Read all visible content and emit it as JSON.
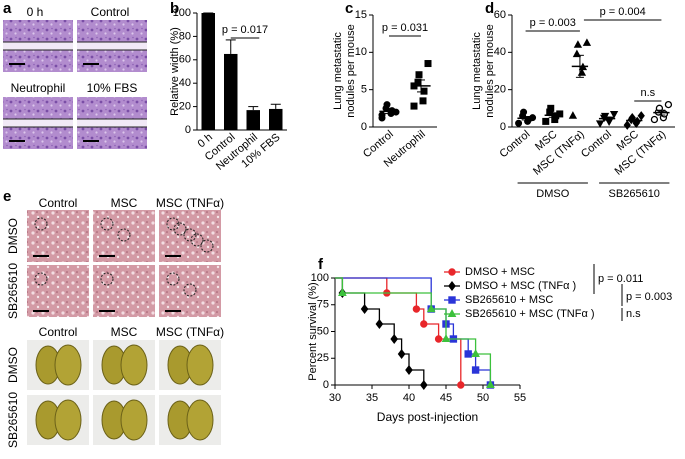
{
  "figure": {
    "a": {
      "label": "a",
      "image_labels": [
        "0 h",
        "Control",
        "Neutrophil",
        "10% FBS"
      ]
    },
    "e": {
      "label": "e",
      "column_labels": [
        "Control",
        "MSC",
        "MSC (TNFα)"
      ],
      "row_labels": [
        "DMSO",
        "SB265610"
      ]
    }
  },
  "chart_data": [
    {
      "panel": "b",
      "type": "bar",
      "ylabel": [
        "Relative width (%)"
      ],
      "categories": [
        "0 h",
        "Control",
        "Neutrophil",
        "10% FBS"
      ],
      "values": [
        100,
        65,
        17,
        18
      ],
      "errors": [
        0,
        12,
        3,
        4
      ],
      "color": "#000000",
      "ylim": [
        0,
        100
      ],
      "yticks": [
        0,
        20,
        40,
        60,
        80,
        100
      ],
      "annotations": [
        "p = 0.017"
      ]
    },
    {
      "panel": "c",
      "type": "scatter",
      "ylabel": [
        "Lung metastatic",
        "nodules per mouse"
      ],
      "categories": [
        "Control",
        "Neutrophil"
      ],
      "markers": [
        "circle",
        "square"
      ],
      "color": "#000000",
      "points": [
        [
          1.2,
          1.8,
          2.2,
          2.5,
          3,
          2,
          1.6
        ],
        [
          2.8,
          3.5,
          4.8,
          6,
          7,
          8.5,
          5.5
        ]
      ],
      "means": [
        2.1,
        5.5
      ],
      "sems": [
        0.3,
        0.8
      ],
      "ylim": [
        0,
        15
      ],
      "yticks": [
        0,
        5,
        10,
        15
      ],
      "annotations": [
        "p = 0.031"
      ]
    },
    {
      "panel": "d",
      "type": "scatter",
      "ylabel": [
        "Lung metastatic",
        "nodules per mouse"
      ],
      "categories": [
        "Control",
        "MSC",
        "MSC (TNFα)",
        "Control",
        "MSC",
        "MSC (TNFα)"
      ],
      "groups": [
        "DMSO",
        "SB265610"
      ],
      "markers": [
        "circle",
        "square",
        "triangle",
        "triangle-down",
        "diamond",
        "circle-open"
      ],
      "color": "#000000",
      "points": [
        [
          2,
          3,
          4,
          6,
          8,
          5
        ],
        [
          3,
          4,
          6,
          8,
          10,
          7
        ],
        [
          6,
          29,
          32,
          39,
          44,
          45
        ],
        [
          2,
          3,
          4,
          5,
          6,
          7
        ],
        [
          1,
          2,
          3,
          4,
          5,
          6
        ],
        [
          4,
          5,
          7,
          8,
          10,
          12
        ]
      ],
      "means": [
        4.7,
        6.3,
        32.5,
        4.5,
        3.5,
        7.7
      ],
      "sems": [
        0.9,
        1.1,
        5.9,
        0.8,
        0.8,
        1.3
      ],
      "ylim": [
        0,
        60
      ],
      "yticks": [
        0,
        20,
        40,
        60
      ],
      "annotations": [
        "p = 0.003",
        "p = 0.004",
        "n.s"
      ]
    },
    {
      "panel": "f",
      "type": "line",
      "step": true,
      "ylabel": [
        "Percent survival (%)"
      ],
      "xlabel": "Days post-injection",
      "xlim": [
        30,
        55
      ],
      "xticks": [
        30,
        35,
        40,
        45,
        50,
        55
      ],
      "ylim": [
        0,
        100
      ],
      "yticks": [
        0,
        25,
        50,
        75,
        100
      ],
      "series": [
        {
          "name": "DMSO + MSC",
          "color": "#e8262a",
          "marker": "circle",
          "x": [
            30,
            37,
            41,
            42,
            44,
            47
          ],
          "values": [
            100,
            86,
            71,
            57,
            43,
            0
          ]
        },
        {
          "name": "DMSO + MSC (TNFα )",
          "color": "#000000",
          "marker": "diamond",
          "x": [
            30,
            31,
            34,
            36,
            38,
            39,
            40,
            42
          ],
          "values": [
            100,
            86,
            71,
            57,
            43,
            29,
            14,
            0
          ]
        },
        {
          "name": "SB265610 + MSC",
          "color": "#2a35d8",
          "marker": "square",
          "x": [
            30,
            43,
            45,
            46,
            48,
            49,
            51
          ],
          "values": [
            100,
            71,
            57,
            43,
            29,
            14,
            0
          ]
        },
        {
          "name": "SB265610 + MSC (TNFα )",
          "color": "#3cc13c",
          "marker": "triangle",
          "x": [
            30,
            31,
            43,
            45,
            49,
            51
          ],
          "values": [
            100,
            86,
            71,
            43,
            29,
            0
          ]
        }
      ],
      "annotations": [
        "p = 0.011",
        "p = 0.003",
        "n.s"
      ]
    }
  ]
}
